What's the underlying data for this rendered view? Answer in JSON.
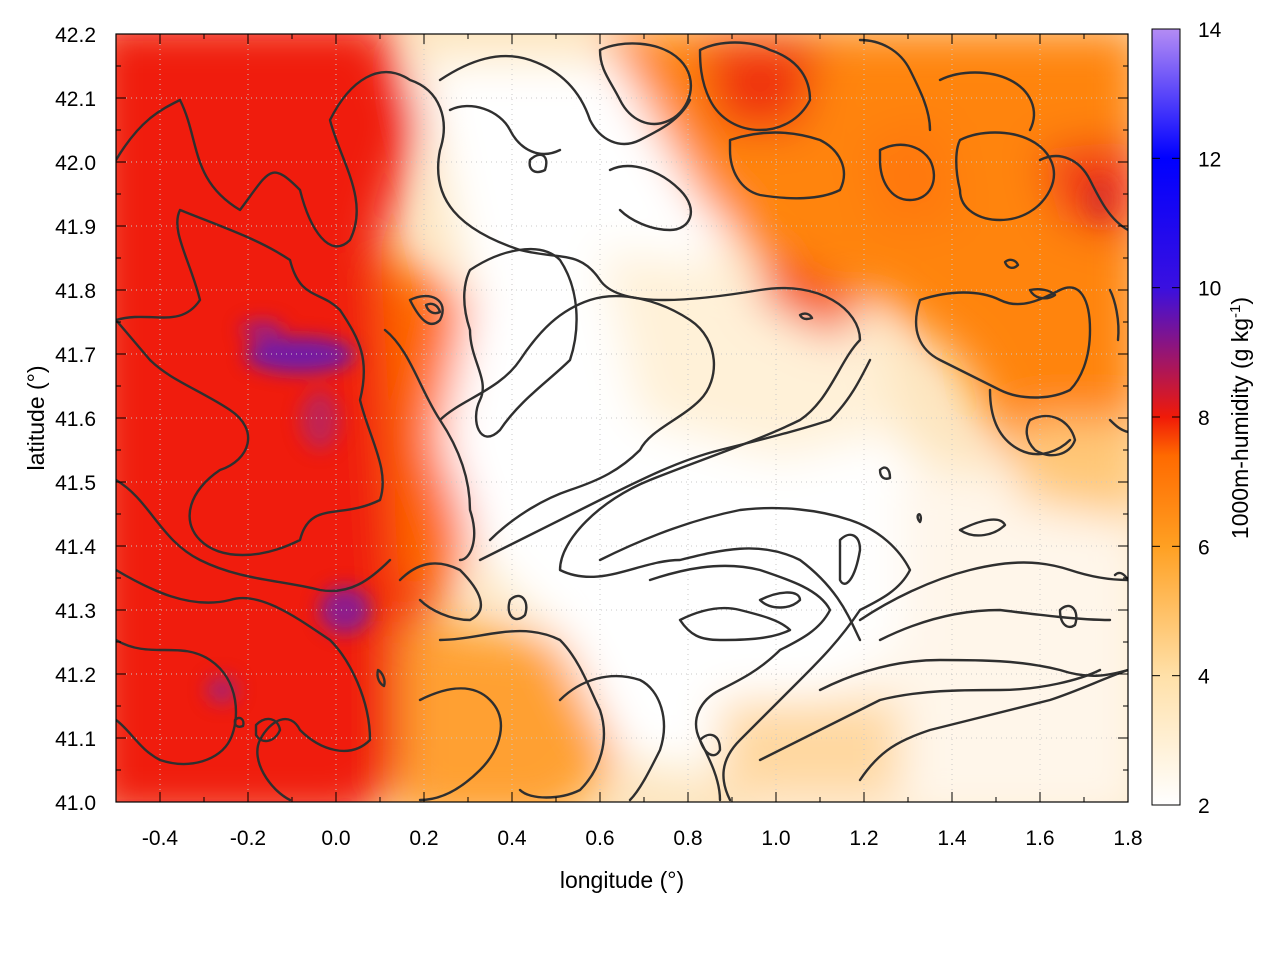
{
  "chart_data": {
    "type": "heatmap",
    "title": "",
    "xlabel": "longitude (°)",
    "ylabel": "latitude (°)",
    "colorbar_label": "1000m-humidity (g kg",
    "colorbar_label_sup": "-1",
    "colorbar_label_end": ")",
    "xlim": [
      -0.5,
      1.8
    ],
    "ylim": [
      41.0,
      42.2
    ],
    "x_ticks": [
      "-0.4",
      "-0.2",
      "0.0",
      "0.2",
      "0.4",
      "0.6",
      "0.8",
      "1.0",
      "1.2",
      "1.4",
      "1.6",
      "1.8"
    ],
    "y_ticks": [
      "41.0",
      "41.1",
      "41.2",
      "41.3",
      "41.4",
      "41.5",
      "41.6",
      "41.7",
      "41.8",
      "41.9",
      "42.0",
      "42.1",
      "42.2"
    ],
    "colorbar_range": [
      2,
      14
    ],
    "colorbar_ticks": [
      "2",
      "4",
      "6",
      "8",
      "10",
      "12",
      "14"
    ],
    "colormap": [
      "#ffffff",
      "#ffe0a8",
      "#ffa022",
      "#ff6a00",
      "#f01a08",
      "#3a10e0",
      "#0000ff",
      "#b48cf4"
    ],
    "grid": true,
    "contours": true,
    "regions": [
      {
        "lon": [
          -0.5,
          0.05
        ],
        "lat": [
          41.0,
          42.2
        ],
        "humidity": 7.6
      },
      {
        "lon": [
          0.05,
          0.35
        ],
        "lat": [
          41.0,
          41.7
        ],
        "humidity": 6.5
      },
      {
        "lon": [
          0.35,
          0.95
        ],
        "lat": [
          41.2,
          42.1
        ],
        "humidity": 3.0
      },
      {
        "lon": [
          1.2,
          1.8
        ],
        "lat": [
          41.5,
          42.2
        ],
        "humidity": 5.8
      },
      {
        "lon": [
          0.95,
          1.8
        ],
        "lat": [
          41.0,
          41.4
        ],
        "humidity": 2.6
      },
      {
        "lon": [
          -0.12,
          -0.02
        ],
        "lat": [
          41.64,
          41.72
        ],
        "humidity": 9.5
      },
      {
        "lon": [
          -0.05,
          0.05
        ],
        "lat": [
          41.26,
          41.34
        ],
        "humidity": 9.2
      }
    ]
  }
}
